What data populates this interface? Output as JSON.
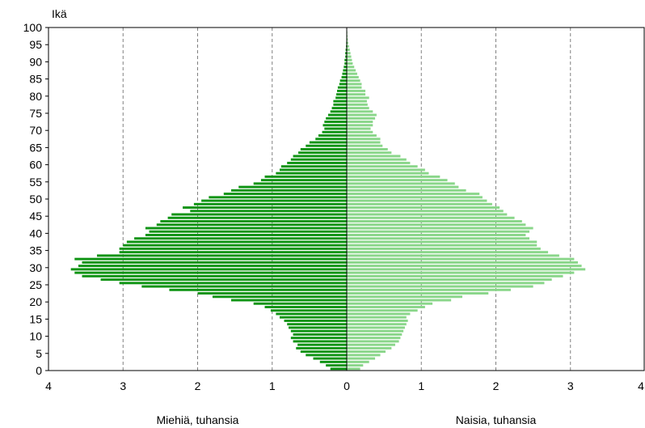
{
  "chart_data": {
    "type": "bar",
    "orientation": "horizontal",
    "layout": "population-pyramid",
    "y_axis_title": "Ikä",
    "y_ticks": [
      "0",
      "5",
      "10",
      "15",
      "20",
      "25",
      "30",
      "35",
      "40",
      "45",
      "50",
      "55",
      "60",
      "65",
      "70",
      "75",
      "80",
      "85",
      "90",
      "95",
      "100"
    ],
    "x_ticks_left": [
      "4",
      "3",
      "2",
      "1",
      "0"
    ],
    "x_ticks_right": [
      "1",
      "2",
      "3",
      "4"
    ],
    "xlim": [
      -4,
      4
    ],
    "ylim": [
      0,
      100
    ],
    "grid": "vertical dashed",
    "left_xlabel": "Miehiä, tuhansia",
    "right_xlabel": "Naisia, tuhansia",
    "ages": [
      0,
      1,
      2,
      3,
      4,
      5,
      6,
      7,
      8,
      9,
      10,
      11,
      12,
      13,
      14,
      15,
      16,
      17,
      18,
      19,
      20,
      21,
      22,
      23,
      24,
      25,
      26,
      27,
      28,
      29,
      30,
      31,
      32,
      33,
      34,
      35,
      36,
      37,
      38,
      39,
      40,
      41,
      42,
      43,
      44,
      45,
      46,
      47,
      48,
      49,
      50,
      51,
      52,
      53,
      54,
      55,
      56,
      57,
      58,
      59,
      60,
      61,
      62,
      63,
      64,
      65,
      66,
      67,
      68,
      69,
      70,
      71,
      72,
      73,
      74,
      75,
      76,
      77,
      78,
      79,
      80,
      81,
      82,
      83,
      84,
      85,
      86,
      87,
      88,
      89,
      90,
      91,
      92,
      93,
      94,
      95,
      96,
      97,
      98,
      99
    ],
    "series": [
      {
        "name": "Miehiä, tuhansia",
        "color": "#0f9414",
        "values": [
          0.22,
          0.28,
          0.36,
          0.45,
          0.55,
          0.62,
          0.68,
          0.66,
          0.72,
          0.75,
          0.72,
          0.75,
          0.78,
          0.8,
          0.84,
          0.9,
          0.95,
          1.02,
          1.1,
          1.25,
          1.55,
          1.8,
          2.0,
          2.38,
          2.75,
          3.05,
          3.3,
          3.55,
          3.65,
          3.7,
          3.6,
          3.55,
          3.65,
          3.35,
          3.05,
          3.05,
          3.0,
          2.95,
          2.85,
          2.7,
          2.65,
          2.7,
          2.55,
          2.5,
          2.4,
          2.35,
          2.1,
          2.2,
          2.05,
          1.95,
          1.85,
          1.65,
          1.55,
          1.45,
          1.25,
          1.15,
          1.1,
          0.95,
          0.9,
          0.88,
          0.8,
          0.75,
          0.72,
          0.65,
          0.62,
          0.55,
          0.5,
          0.42,
          0.38,
          0.33,
          0.3,
          0.32,
          0.3,
          0.28,
          0.25,
          0.22,
          0.2,
          0.18,
          0.18,
          0.15,
          0.14,
          0.13,
          0.12,
          0.1,
          0.09,
          0.07,
          0.06,
          0.05,
          0.04,
          0.03,
          0.03,
          0.02,
          0.02,
          0.015,
          0.01,
          0.008,
          0.006,
          0.004,
          0.003,
          0.002
        ]
      },
      {
        "name": "Naisia, tuhansia",
        "color": "#8ad68a",
        "values": [
          0.18,
          0.22,
          0.3,
          0.38,
          0.45,
          0.52,
          0.6,
          0.65,
          0.7,
          0.72,
          0.74,
          0.76,
          0.78,
          0.8,
          0.82,
          0.8,
          0.85,
          0.95,
          1.05,
          1.15,
          1.4,
          1.55,
          1.9,
          2.2,
          2.5,
          2.65,
          2.75,
          2.9,
          3.05,
          3.2,
          3.15,
          3.1,
          3.05,
          2.85,
          2.7,
          2.6,
          2.55,
          2.55,
          2.45,
          2.4,
          2.45,
          2.5,
          2.4,
          2.35,
          2.25,
          2.15,
          2.1,
          2.05,
          1.95,
          1.88,
          1.82,
          1.78,
          1.6,
          1.5,
          1.45,
          1.35,
          1.25,
          1.1,
          1.05,
          0.95,
          0.85,
          0.8,
          0.72,
          0.6,
          0.55,
          0.48,
          0.45,
          0.45,
          0.4,
          0.35,
          0.32,
          0.35,
          0.35,
          0.38,
          0.4,
          0.35,
          0.3,
          0.28,
          0.27,
          0.3,
          0.25,
          0.25,
          0.2,
          0.2,
          0.18,
          0.16,
          0.14,
          0.12,
          0.1,
          0.08,
          0.07,
          0.06,
          0.05,
          0.04,
          0.03,
          0.02,
          0.015,
          0.01,
          0.008,
          0.005
        ]
      }
    ]
  }
}
